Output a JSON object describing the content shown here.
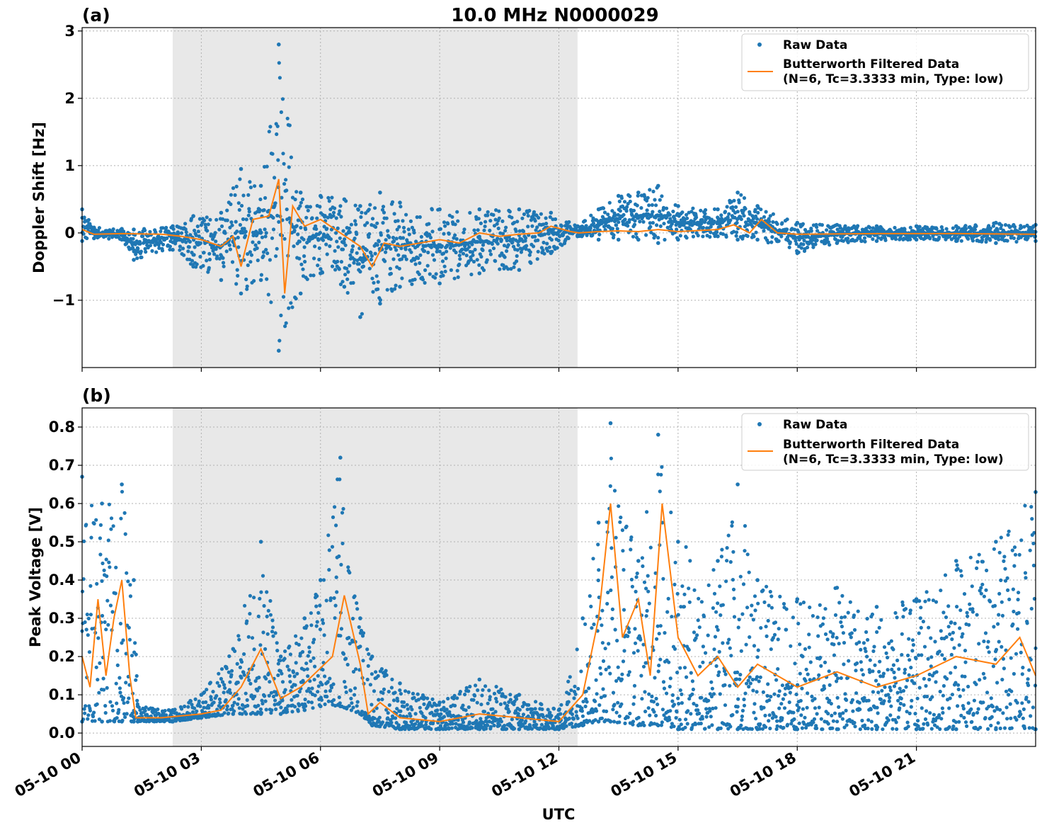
{
  "title": "10.0 MHz N0000029",
  "xlabel": "UTC",
  "x_ticks": [
    "05-10 00",
    "05-10 03",
    "05-10 06",
    "05-10 09",
    "05-10 12",
    "05-10 15",
    "05-10 18",
    "05-10 21"
  ],
  "colors": {
    "raw": "#1f77b4",
    "filtered": "#ff7f0e",
    "shade": "#e8e8e8",
    "grid": "#b0b0b0"
  },
  "legend": {
    "raw": "Raw Data",
    "filtered_line1": "Butterworth Filtered Data",
    "filtered_line2": "(N=6, Tc=3.3333 min, Type: low)"
  },
  "chart_data": [
    {
      "type": "scatter",
      "panel_label": "(a)",
      "ylabel": "Doppler Shift [Hz]",
      "xlim_hours": [
        0,
        24
      ],
      "ylim": [
        -2,
        3.05
      ],
      "y_ticks": [
        3,
        2,
        1,
        0,
        -1
      ],
      "y_tick_labels": [
        "3",
        "2",
        "1",
        "0",
        "−1"
      ],
      "shaded_interval_hours": [
        2.28,
        12.47
      ],
      "grid": true,
      "legend_position": "top-right",
      "series": [
        {
          "name": "Raw Data",
          "kind": "points",
          "envelope": [
            {
              "x": 0.0,
              "lo": -0.12,
              "hi": 0.35
            },
            {
              "x": 0.3,
              "lo": -0.08,
              "hi": 0.08
            },
            {
              "x": 1.0,
              "lo": -0.1,
              "hi": 0.06
            },
            {
              "x": 1.3,
              "lo": -0.4,
              "hi": 0.05
            },
            {
              "x": 2.28,
              "lo": -0.25,
              "hi": 0.1
            },
            {
              "x": 2.8,
              "lo": -0.5,
              "hi": 0.25
            },
            {
              "x": 3.5,
              "lo": -0.7,
              "hi": 0.3
            },
            {
              "x": 4.0,
              "lo": -0.9,
              "hi": 0.95
            },
            {
              "x": 4.5,
              "lo": -0.7,
              "hi": 0.7
            },
            {
              "x": 4.95,
              "lo": -1.75,
              "hi": 2.8
            },
            {
              "x": 5.5,
              "lo": -0.9,
              "hi": 0.6
            },
            {
              "x": 6.0,
              "lo": -0.6,
              "hi": 0.55
            },
            {
              "x": 6.6,
              "lo": -0.8,
              "hi": 0.5
            },
            {
              "x": 7.0,
              "lo": -1.25,
              "hi": 0.4
            },
            {
              "x": 7.5,
              "lo": -1.05,
              "hi": 0.6
            },
            {
              "x": 8.0,
              "lo": -0.8,
              "hi": 0.45
            },
            {
              "x": 9.0,
              "lo": -0.75,
              "hi": 0.35
            },
            {
              "x": 10.0,
              "lo": -0.6,
              "hi": 0.35
            },
            {
              "x": 11.0,
              "lo": -0.55,
              "hi": 0.35
            },
            {
              "x": 11.8,
              "lo": -0.3,
              "hi": 0.3
            },
            {
              "x": 12.47,
              "lo": -0.05,
              "hi": 0.1
            },
            {
              "x": 13.0,
              "lo": -0.1,
              "hi": 0.35
            },
            {
              "x": 13.5,
              "lo": -0.1,
              "hi": 0.55
            },
            {
              "x": 14.0,
              "lo": -0.1,
              "hi": 0.6
            },
            {
              "x": 14.5,
              "lo": -0.15,
              "hi": 0.7
            },
            {
              "x": 15.0,
              "lo": -0.1,
              "hi": 0.4
            },
            {
              "x": 16.0,
              "lo": -0.05,
              "hi": 0.35
            },
            {
              "x": 16.5,
              "lo": -0.1,
              "hi": 0.6
            },
            {
              "x": 17.0,
              "lo": -0.1,
              "hi": 0.4
            },
            {
              "x": 18.0,
              "lo": -0.3,
              "hi": 0.15
            },
            {
              "x": 19.0,
              "lo": -0.15,
              "hi": 0.12
            },
            {
              "x": 20.0,
              "lo": -0.12,
              "hi": 0.1
            },
            {
              "x": 21.0,
              "lo": -0.1,
              "hi": 0.1
            },
            {
              "x": 22.0,
              "lo": -0.12,
              "hi": 0.1
            },
            {
              "x": 23.0,
              "lo": -0.15,
              "hi": 0.15
            },
            {
              "x": 24.0,
              "lo": -0.12,
              "hi": 0.12
            }
          ]
        },
        {
          "name": "Butterworth Filtered Data",
          "kind": "line",
          "points": [
            {
              "x": 0.0,
              "y": 0.05
            },
            {
              "x": 0.3,
              "y": -0.02
            },
            {
              "x": 1.0,
              "y": -0.01
            },
            {
              "x": 2.0,
              "y": -0.02
            },
            {
              "x": 2.5,
              "y": -0.05
            },
            {
              "x": 3.0,
              "y": -0.1
            },
            {
              "x": 3.5,
              "y": -0.2
            },
            {
              "x": 3.8,
              "y": -0.05
            },
            {
              "x": 4.0,
              "y": -0.5
            },
            {
              "x": 4.3,
              "y": 0.2
            },
            {
              "x": 4.7,
              "y": 0.25
            },
            {
              "x": 4.95,
              "y": 0.8
            },
            {
              "x": 5.1,
              "y": -0.9
            },
            {
              "x": 5.3,
              "y": 0.4
            },
            {
              "x": 5.6,
              "y": 0.1
            },
            {
              "x": 6.0,
              "y": 0.2
            },
            {
              "x": 6.5,
              "y": 0.0
            },
            {
              "x": 7.0,
              "y": -0.2
            },
            {
              "x": 7.3,
              "y": -0.5
            },
            {
              "x": 7.6,
              "y": -0.15
            },
            {
              "x": 8.0,
              "y": -0.2
            },
            {
              "x": 8.5,
              "y": -0.15
            },
            {
              "x": 9.0,
              "y": -0.1
            },
            {
              "x": 9.5,
              "y": -0.15
            },
            {
              "x": 10.0,
              "y": 0.0
            },
            {
              "x": 10.5,
              "y": -0.05
            },
            {
              "x": 11.0,
              "y": -0.02
            },
            {
              "x": 11.5,
              "y": 0.0
            },
            {
              "x": 11.8,
              "y": 0.1
            },
            {
              "x": 12.3,
              "y": 0.02
            },
            {
              "x": 12.5,
              "y": 0.0
            },
            {
              "x": 13.0,
              "y": 0.02
            },
            {
              "x": 13.5,
              "y": 0.03
            },
            {
              "x": 14.0,
              "y": 0.02
            },
            {
              "x": 14.5,
              "y": 0.05
            },
            {
              "x": 15.0,
              "y": 0.02
            },
            {
              "x": 16.0,
              "y": 0.05
            },
            {
              "x": 16.4,
              "y": 0.12
            },
            {
              "x": 16.8,
              "y": 0.0
            },
            {
              "x": 17.1,
              "y": 0.2
            },
            {
              "x": 17.5,
              "y": 0.0
            },
            {
              "x": 18.0,
              "y": -0.02
            },
            {
              "x": 20.0,
              "y": -0.01
            },
            {
              "x": 22.0,
              "y": -0.01
            },
            {
              "x": 24.0,
              "y": -0.02
            }
          ]
        }
      ]
    },
    {
      "type": "scatter",
      "panel_label": "(b)",
      "ylabel": "Peak Voltage [V]",
      "xlim_hours": [
        0,
        24
      ],
      "ylim": [
        -0.035,
        0.85
      ],
      "y_ticks": [
        0.8,
        0.7,
        0.6,
        0.5,
        0.4,
        0.3,
        0.2,
        0.1,
        0.0
      ],
      "y_tick_labels": [
        "0.8",
        "0.7",
        "0.6",
        "0.5",
        "0.4",
        "0.3",
        "0.2",
        "0.1",
        "0.0"
      ],
      "shaded_interval_hours": [
        2.28,
        12.47
      ],
      "grid": true,
      "legend_position": "top-right",
      "series": [
        {
          "name": "Raw Data",
          "kind": "points",
          "envelope": [
            {
              "x": 0.0,
              "lo": 0.03,
              "hi": 0.67
            },
            {
              "x": 0.5,
              "lo": 0.03,
              "hi": 0.6
            },
            {
              "x": 1.0,
              "lo": 0.03,
              "hi": 0.65
            },
            {
              "x": 1.3,
              "lo": 0.03,
              "hi": 0.4
            },
            {
              "x": 1.4,
              "lo": 0.03,
              "hi": 0.07
            },
            {
              "x": 2.28,
              "lo": 0.03,
              "hi": 0.06
            },
            {
              "x": 3.0,
              "lo": 0.04,
              "hi": 0.1
            },
            {
              "x": 3.8,
              "lo": 0.05,
              "hi": 0.22
            },
            {
              "x": 4.5,
              "lo": 0.05,
              "hi": 0.5
            },
            {
              "x": 5.0,
              "lo": 0.05,
              "hi": 0.2
            },
            {
              "x": 5.6,
              "lo": 0.06,
              "hi": 0.3
            },
            {
              "x": 6.0,
              "lo": 0.07,
              "hi": 0.4
            },
            {
              "x": 6.5,
              "lo": 0.07,
              "hi": 0.72
            },
            {
              "x": 7.0,
              "lo": 0.05,
              "hi": 0.3
            },
            {
              "x": 7.3,
              "lo": 0.02,
              "hi": 0.2
            },
            {
              "x": 8.0,
              "lo": 0.01,
              "hi": 0.13
            },
            {
              "x": 9.0,
              "lo": 0.01,
              "hi": 0.08
            },
            {
              "x": 10.0,
              "lo": 0.01,
              "hi": 0.14
            },
            {
              "x": 11.0,
              "lo": 0.01,
              "hi": 0.1
            },
            {
              "x": 12.0,
              "lo": 0.01,
              "hi": 0.06
            },
            {
              "x": 12.6,
              "lo": 0.02,
              "hi": 0.3
            },
            {
              "x": 13.0,
              "lo": 0.03,
              "hi": 0.55
            },
            {
              "x": 13.3,
              "lo": 0.03,
              "hi": 0.81
            },
            {
              "x": 14.0,
              "lo": 0.02,
              "hi": 0.45
            },
            {
              "x": 14.5,
              "lo": 0.02,
              "hi": 0.78
            },
            {
              "x": 15.0,
              "lo": 0.01,
              "hi": 0.5
            },
            {
              "x": 16.0,
              "lo": 0.01,
              "hi": 0.45
            },
            {
              "x": 16.5,
              "lo": 0.01,
              "hi": 0.65
            },
            {
              "x": 17.0,
              "lo": 0.01,
              "hi": 0.4
            },
            {
              "x": 18.0,
              "lo": 0.01,
              "hi": 0.35
            },
            {
              "x": 19.0,
              "lo": 0.01,
              "hi": 0.38
            },
            {
              "x": 20.0,
              "lo": 0.01,
              "hi": 0.33
            },
            {
              "x": 21.0,
              "lo": 0.01,
              "hi": 0.35
            },
            {
              "x": 22.0,
              "lo": 0.01,
              "hi": 0.45
            },
            {
              "x": 23.0,
              "lo": 0.01,
              "hi": 0.5
            },
            {
              "x": 24.0,
              "lo": 0.01,
              "hi": 0.63
            }
          ]
        },
        {
          "name": "Butterworth Filtered Data",
          "kind": "line",
          "points": [
            {
              "x": 0.0,
              "y": 0.2
            },
            {
              "x": 0.2,
              "y": 0.12
            },
            {
              "x": 0.4,
              "y": 0.35
            },
            {
              "x": 0.6,
              "y": 0.15
            },
            {
              "x": 0.8,
              "y": 0.3
            },
            {
              "x": 1.0,
              "y": 0.4
            },
            {
              "x": 1.2,
              "y": 0.15
            },
            {
              "x": 1.35,
              "y": 0.04
            },
            {
              "x": 2.0,
              "y": 0.04
            },
            {
              "x": 3.0,
              "y": 0.05
            },
            {
              "x": 3.5,
              "y": 0.06
            },
            {
              "x": 4.0,
              "y": 0.12
            },
            {
              "x": 4.5,
              "y": 0.22
            },
            {
              "x": 5.0,
              "y": 0.09
            },
            {
              "x": 5.5,
              "y": 0.12
            },
            {
              "x": 6.0,
              "y": 0.17
            },
            {
              "x": 6.3,
              "y": 0.2
            },
            {
              "x": 6.6,
              "y": 0.36
            },
            {
              "x": 7.0,
              "y": 0.18
            },
            {
              "x": 7.2,
              "y": 0.05
            },
            {
              "x": 7.5,
              "y": 0.08
            },
            {
              "x": 8.0,
              "y": 0.04
            },
            {
              "x": 9.0,
              "y": 0.03
            },
            {
              "x": 10.0,
              "y": 0.05
            },
            {
              "x": 11.0,
              "y": 0.04
            },
            {
              "x": 12.0,
              "y": 0.03
            },
            {
              "x": 12.6,
              "y": 0.1
            },
            {
              "x": 13.0,
              "y": 0.3
            },
            {
              "x": 13.3,
              "y": 0.6
            },
            {
              "x": 13.6,
              "y": 0.25
            },
            {
              "x": 14.0,
              "y": 0.35
            },
            {
              "x": 14.3,
              "y": 0.15
            },
            {
              "x": 14.6,
              "y": 0.6
            },
            {
              "x": 15.0,
              "y": 0.25
            },
            {
              "x": 15.5,
              "y": 0.15
            },
            {
              "x": 16.0,
              "y": 0.2
            },
            {
              "x": 16.5,
              "y": 0.12
            },
            {
              "x": 17.0,
              "y": 0.18
            },
            {
              "x": 18.0,
              "y": 0.12
            },
            {
              "x": 19.0,
              "y": 0.16
            },
            {
              "x": 20.0,
              "y": 0.12
            },
            {
              "x": 21.0,
              "y": 0.15
            },
            {
              "x": 22.0,
              "y": 0.2
            },
            {
              "x": 23.0,
              "y": 0.18
            },
            {
              "x": 23.6,
              "y": 0.25
            },
            {
              "x": 24.0,
              "y": 0.15
            }
          ]
        }
      ]
    }
  ]
}
